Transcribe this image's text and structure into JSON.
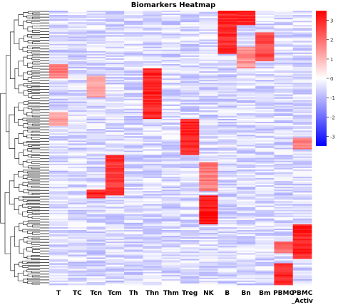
{
  "chart_data": {
    "type": "heatmap",
    "title": "Biomarkers Heatmap",
    "columns": [
      "T",
      "TC",
      "Tcn",
      "Tcm",
      "Th",
      "Thn",
      "Thm",
      "Treg",
      "NK",
      "B",
      "Bn",
      "Bm",
      "PBMC",
      "PBMC\n_Activ"
    ],
    "color_scale": {
      "min": -3.5,
      "max": 3.5,
      "low": "#0000ff",
      "mid": "#ffffff",
      "high": "#ff0000"
    },
    "colorbar_ticks": [
      3,
      2,
      1,
      0,
      -1,
      -2,
      -3
    ],
    "row_dendrogram": true,
    "grid": false,
    "legend_placement": "right",
    "row_count": 190,
    "high_blocks": [
      {
        "column": "B",
        "rows": [
          0,
          30
        ],
        "value": 3.0
      },
      {
        "column": "Bn",
        "rows": [
          0,
          10
        ],
        "value": 3.0
      },
      {
        "column": "Bn",
        "rows": [
          25,
          40
        ],
        "value": 1.5
      },
      {
        "column": "Bm",
        "rows": [
          15,
          35
        ],
        "value": 2.5
      },
      {
        "column": "T",
        "rows": [
          37,
          47
        ],
        "value": 1.8
      },
      {
        "column": "T",
        "rows": [
          70,
          80
        ],
        "value": 1.2
      },
      {
        "column": "Tcn",
        "rows": [
          45,
          60
        ],
        "value": 1.2
      },
      {
        "column": "Tcn",
        "rows": [
          124,
          130
        ],
        "value": 3.0
      },
      {
        "column": "Thn",
        "rows": [
          40,
          75
        ],
        "value": 3.0
      },
      {
        "column": "Treg",
        "rows": [
          75,
          100
        ],
        "value": 3.0
      },
      {
        "column": "Tcm",
        "rows": [
          100,
          128
        ],
        "value": 2.8
      },
      {
        "column": "NK",
        "rows": [
          105,
          125
        ],
        "value": 1.8
      },
      {
        "column": "NK",
        "rows": [
          128,
          148
        ],
        "value": 3.2
      },
      {
        "column": "PBMC\n_Activ",
        "rows": [
          148,
          172
        ],
        "value": 3.0
      },
      {
        "column": "PBMC\n_Activ",
        "rows": [
          88,
          96
        ],
        "value": 1.8
      },
      {
        "column": "PBMC",
        "rows": [
          160,
          168
        ],
        "value": 2.0
      },
      {
        "column": "PBMC",
        "rows": [
          175,
          190
        ],
        "value": 3.0
      }
    ]
  }
}
